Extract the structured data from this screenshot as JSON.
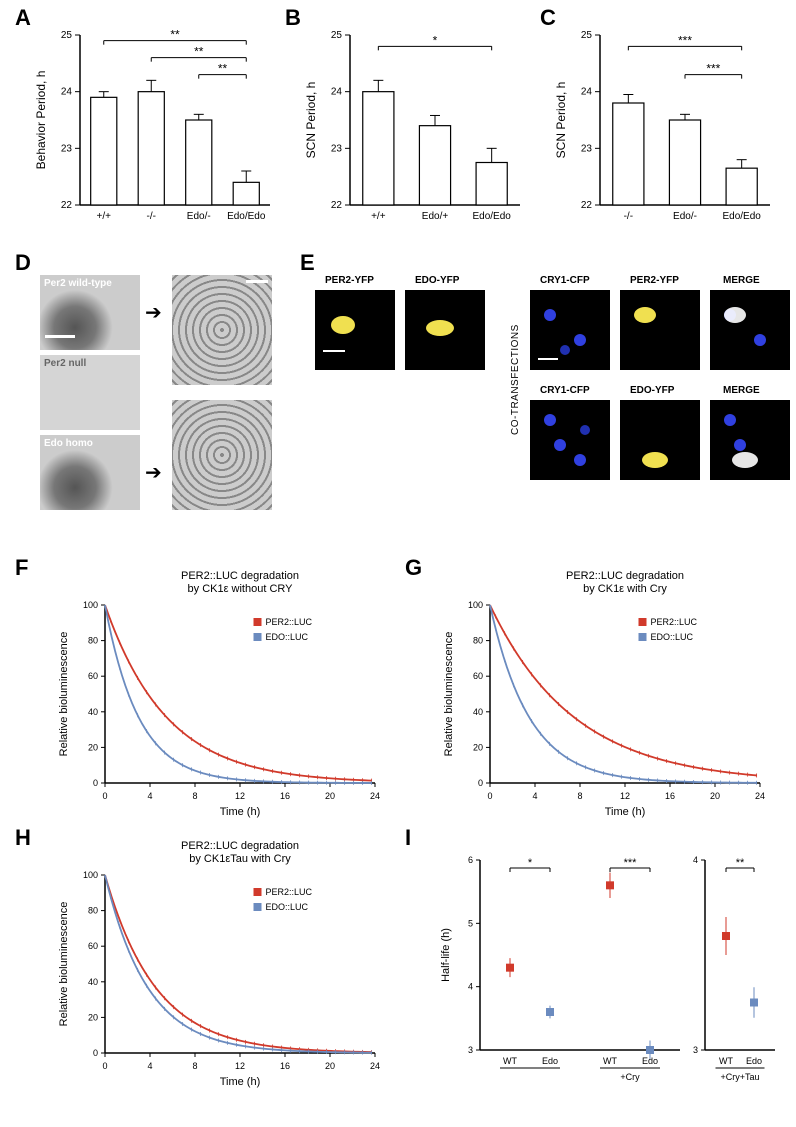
{
  "labels": {
    "A": "A",
    "B": "B",
    "C": "C",
    "D": "D",
    "E": "E",
    "F": "F",
    "G": "G",
    "H": "H",
    "I": "I"
  },
  "panelA": {
    "type": "bar",
    "ylabel": "Behavior Period, h",
    "ylim": [
      22,
      25
    ],
    "ytick_step": 1,
    "categories": [
      "+/+",
      "-/-",
      "Edo/-",
      "Edo/Edo"
    ],
    "values": [
      23.9,
      24.0,
      23.5,
      22.4
    ],
    "errors": [
      0.1,
      0.2,
      0.1,
      0.2
    ],
    "bar_color": "#ffffff",
    "bar_border": "#000000",
    "bar_width": 0.55,
    "sig": [
      {
        "from": 0,
        "to": 3,
        "label": "**",
        "y": 24.9
      },
      {
        "from": 1,
        "to": 3,
        "label": "**",
        "y": 24.6
      },
      {
        "from": 2,
        "to": 3,
        "label": "**",
        "y": 24.3
      }
    ],
    "axis_fontsize": 12,
    "tick_fontsize": 10
  },
  "panelB": {
    "type": "bar",
    "ylabel": "SCN Period, h",
    "ylim": [
      22,
      25
    ],
    "ytick_step": 1,
    "categories": [
      "+/+",
      "Edo/+",
      "Edo/Edo"
    ],
    "values": [
      24.0,
      23.4,
      22.75
    ],
    "errors": [
      0.2,
      0.18,
      0.25
    ],
    "bar_color": "#ffffff",
    "bar_border": "#000000",
    "bar_width": 0.55,
    "sig": [
      {
        "from": 0,
        "to": 2,
        "label": "*",
        "y": 24.8
      }
    ],
    "axis_fontsize": 12,
    "tick_fontsize": 10
  },
  "panelC": {
    "type": "bar",
    "ylabel": "SCN Period, h",
    "ylim": [
      22,
      25
    ],
    "ytick_step": 1,
    "categories": [
      "-/-",
      "Edo/-",
      "Edo/Edo"
    ],
    "values": [
      23.8,
      23.5,
      22.65
    ],
    "errors": [
      0.15,
      0.1,
      0.15
    ],
    "bar_color": "#ffffff",
    "bar_border": "#000000",
    "bar_width": 0.55,
    "sig": [
      {
        "from": 0,
        "to": 2,
        "label": "***",
        "y": 24.8
      },
      {
        "from": 1,
        "to": 2,
        "label": "***",
        "y": 24.3
      }
    ],
    "axis_fontsize": 12,
    "tick_fontsize": 10
  },
  "panelD": {
    "rows": [
      {
        "label": "Per2 wild-type"
      },
      {
        "label": "Per2 null"
      },
      {
        "label": "Edo homo"
      }
    ],
    "scalebar_color": "#ffffff"
  },
  "panelE": {
    "singles": [
      {
        "label": "PER2-YFP",
        "color": "#f0e050"
      },
      {
        "label": "EDO-YFP",
        "color": "#f0e050"
      }
    ],
    "cotransfections_label": "CO-TRANSFECTIONS",
    "grid_labels": [
      "CRY1-CFP",
      "PER2-YFP",
      "MERGE",
      "CRY1-CFP",
      "EDO-YFP",
      "MERGE"
    ],
    "cfp_color": "#3030ff",
    "yfp_color": "#f0e050",
    "merge_color": "#ffffff"
  },
  "panelF": {
    "type": "line",
    "title": "PER2::LUC degradation\nby CK1ε without CRY",
    "xlabel": "Time (h)",
    "ylabel": "Relative bioluminescence",
    "xlim": [
      0,
      24
    ],
    "xtick_step": 4,
    "ylim": [
      0,
      100
    ],
    "ytick_step": 20,
    "series": [
      {
        "name": "PER2::LUC",
        "color": "#d13a2b",
        "tau": 5.5
      },
      {
        "name": "EDO::LUC",
        "color": "#6b8bbf",
        "tau": 3.0
      }
    ],
    "legend": [
      "PER2::LUC",
      "EDO::LUC"
    ],
    "axis_fontsize": 11,
    "tick_fontsize": 9,
    "title_fontsize": 11
  },
  "panelG": {
    "type": "line",
    "title": "PER2::LUC degradation\nby CK1ε with Cry",
    "xlabel": "Time (h)",
    "ylabel": "Relative bioluminescence",
    "xlim": [
      0,
      24
    ],
    "xtick_step": 4,
    "ylim": [
      0,
      100
    ],
    "ytick_step": 20,
    "series": [
      {
        "name": "PER2::LUC",
        "color": "#d13a2b",
        "tau": 7.5
      },
      {
        "name": "EDO::LUC",
        "color": "#6b8bbf",
        "tau": 3.5
      }
    ],
    "legend": [
      "PER2::LUC",
      "EDO::LUC"
    ],
    "axis_fontsize": 11,
    "tick_fontsize": 9,
    "title_fontsize": 11
  },
  "panelH": {
    "type": "line",
    "title": "PER2::LUC degradation\nby CK1εTau with Cry",
    "xlabel": "Time (h)",
    "ylabel": "Relative bioluminescence",
    "xlim": [
      0,
      24
    ],
    "xtick_step": 4,
    "ylim": [
      0,
      100
    ],
    "ytick_step": 20,
    "series": [
      {
        "name": "PER2::LUC",
        "color": "#d13a2b",
        "tau": 4.5
      },
      {
        "name": "EDO::LUC",
        "color": "#6b8bbf",
        "tau": 3.8
      }
    ],
    "legend": [
      "PER2::LUC",
      "EDO::LUC"
    ],
    "axis_fontsize": 11,
    "tick_fontsize": 9,
    "title_fontsize": 11
  },
  "panelI": {
    "type": "scatter",
    "ylabel": "Half-life (h)",
    "left": {
      "ylim": [
        3,
        6
      ],
      "ytick_step": 1,
      "groups": [
        {
          "label": "",
          "sub": "",
          "cats": [
            "WT",
            "Edo"
          ],
          "vals": [
            4.3,
            3.6
          ],
          "errs": [
            0.15,
            0.1
          ],
          "colors": [
            "#d13a2b",
            "#6b8bbf"
          ],
          "sig": "*"
        },
        {
          "label": "+Cry",
          "cats": [
            "WT",
            "Edo"
          ],
          "vals": [
            5.6,
            3.0
          ],
          "errs": [
            0.2,
            0.15
          ],
          "colors": [
            "#d13a2b",
            "#6b8bbf"
          ],
          "sig": "***"
        }
      ]
    },
    "right": {
      "ylim": [
        3,
        4
      ],
      "ytick_step": 1,
      "groups": [
        {
          "label": "+Cry+Tau",
          "cats": [
            "WT",
            "Edo"
          ],
          "vals": [
            3.6,
            3.25
          ],
          "errs": [
            0.1,
            0.08
          ],
          "colors": [
            "#d13a2b",
            "#6b8bbf"
          ],
          "sig": "**"
        }
      ]
    },
    "axis_fontsize": 11,
    "tick_fontsize": 9
  },
  "colors": {
    "red": "#d13a2b",
    "blue": "#6b8bbf",
    "black": "#000000",
    "white": "#ffffff"
  }
}
